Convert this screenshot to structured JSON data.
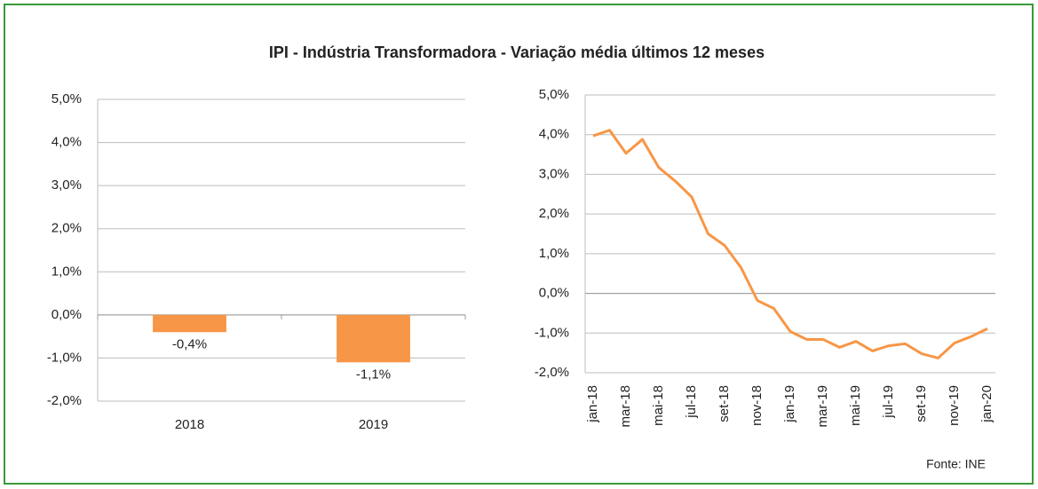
{
  "title": "IPI - Indústria Transformadora - Variação média últimos 12 meses",
  "source": "Fonte: INE",
  "chart_data": [
    {
      "type": "bar",
      "categories": [
        "2018",
        "2019"
      ],
      "values": [
        -0.4,
        -1.1
      ],
      "value_labels": [
        "-0,4%",
        "-1,1%"
      ],
      "color": "#f79646",
      "ylim": [
        -2,
        5
      ],
      "yticks": [
        {
          "value": -2,
          "label": "-2,0%"
        },
        {
          "value": -1,
          "label": "-1,0%"
        },
        {
          "value": 0,
          "label": "0,0%"
        },
        {
          "value": 1,
          "label": "1,0%"
        },
        {
          "value": 2,
          "label": "2,0%"
        },
        {
          "value": 3,
          "label": "3,0%"
        },
        {
          "value": 4,
          "label": "4,0%"
        },
        {
          "value": 5,
          "label": "5,0%"
        }
      ],
      "grid": true
    },
    {
      "type": "line",
      "categories": [
        "jan-18",
        null,
        "mar-18",
        null,
        "mai-18",
        null,
        "jul-18",
        null,
        "set-18",
        null,
        "nov-18",
        null,
        "jan-19",
        null,
        "mar-19",
        null,
        "mai-19",
        null,
        "jul-19",
        null,
        "set-19",
        null,
        "nov-19",
        null,
        "jan-20"
      ],
      "values": [
        3.97,
        4.11,
        3.53,
        3.88,
        3.17,
        2.83,
        2.43,
        1.5,
        1.21,
        0.65,
        -0.18,
        -0.38,
        -0.96,
        -1.16,
        -1.16,
        -1.36,
        -1.21,
        -1.45,
        -1.32,
        -1.27,
        -1.52,
        -1.63,
        -1.25,
        -1.09,
        -0.89
      ],
      "color": "#f79646",
      "ylim": [
        -2,
        5
      ],
      "yticks": [
        {
          "value": -2,
          "label": "-2,0%"
        },
        {
          "value": -1,
          "label": "-1,0%"
        },
        {
          "value": 0,
          "label": "0,0%"
        },
        {
          "value": 1,
          "label": "1,0%"
        },
        {
          "value": 2,
          "label": "2,0%"
        },
        {
          "value": 3,
          "label": "3,0%"
        },
        {
          "value": 4,
          "label": "4,0%"
        },
        {
          "value": 5,
          "label": "5,0%"
        }
      ],
      "grid": true
    }
  ]
}
